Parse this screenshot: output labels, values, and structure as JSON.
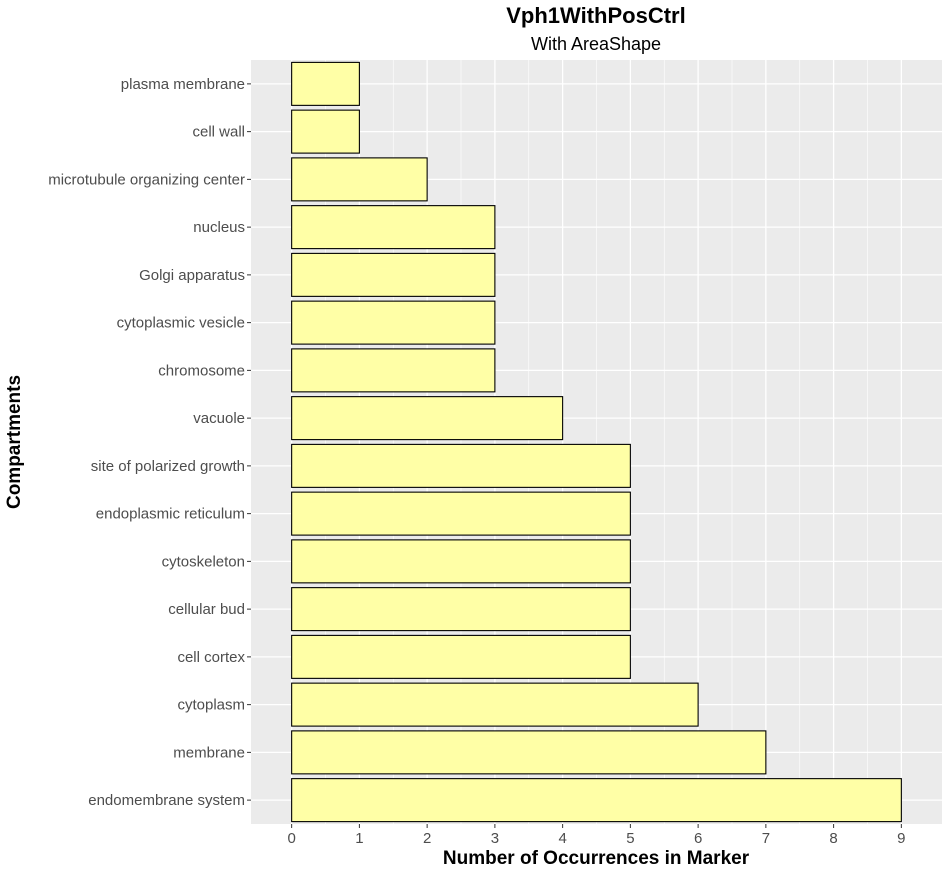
{
  "chart_data": {
    "type": "bar",
    "orientation": "horizontal",
    "title": "Vph1WithPosCtrl",
    "subtitle": "With AreaShape",
    "xlabel": "Number of Occurrences in Marker",
    "ylabel": "Compartments",
    "categories": [
      "plasma membrane",
      "cell wall",
      "microtubule organizing center",
      "nucleus",
      "Golgi apparatus",
      "cytoplasmic vesicle",
      "chromosome",
      "vacuole",
      "site of polarized growth",
      "endoplasmic reticulum",
      "cytoskeleton",
      "cellular bud",
      "cell cortex",
      "cytoplasm",
      "membrane",
      "endomembrane system"
    ],
    "values": [
      1,
      1,
      2,
      3,
      3,
      3,
      3,
      4,
      5,
      5,
      5,
      5,
      5,
      6,
      7,
      9
    ],
    "xticks": [
      0,
      1,
      2,
      3,
      4,
      5,
      6,
      7,
      8,
      9
    ],
    "xlim": [
      -0.6,
      9.6
    ],
    "grid": true,
    "legend": "none",
    "colors": {
      "bar_fill": "#ffffa6",
      "bar_stroke": "#000000",
      "panel_background": "#ebebeb",
      "grid": "#ffffff"
    }
  }
}
